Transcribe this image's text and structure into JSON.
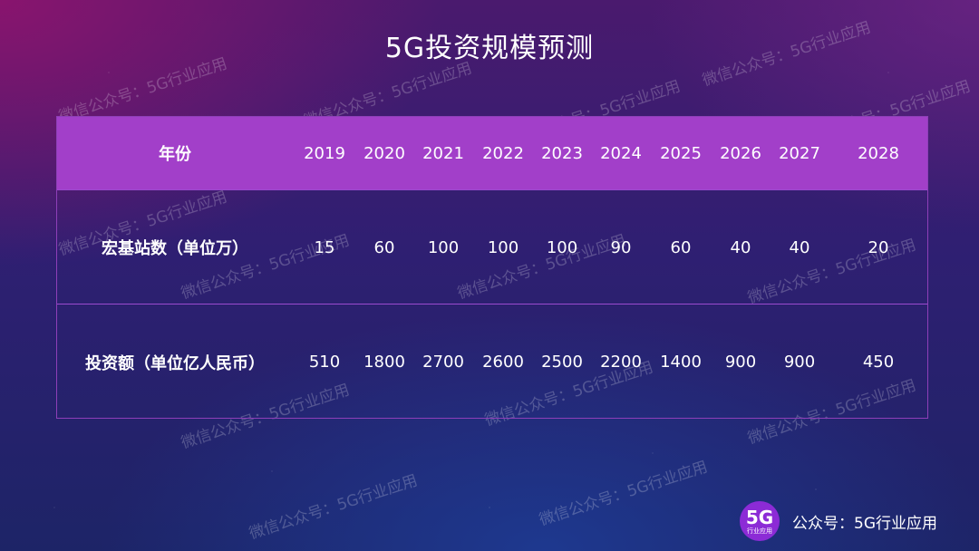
{
  "title": "5G投资规模预测",
  "table": {
    "header": [
      "年份",
      "2019",
      "2020",
      "2021",
      "2022",
      "2023",
      "2024",
      "2025",
      "2026",
      "2027",
      "2028"
    ],
    "rows": [
      [
        "宏基站数（单位万）",
        "15",
        "60",
        "100",
        "100",
        "100",
        "90",
        "60",
        "40",
        "40",
        "20"
      ],
      [
        "投资额（单位亿人民币）",
        "510",
        "1800",
        "2700",
        "2600",
        "2500",
        "2200",
        "1400",
        "900",
        "900",
        "450"
      ]
    ]
  },
  "watermark": "微信公众号：5G行业应用",
  "footer": {
    "logo_big": "5G",
    "logo_small": "行业应用",
    "account": "公众号：5G行业应用"
  },
  "colors": {
    "header_bg": "#a23fc9",
    "border": "#8e3fb8",
    "logo_bg": "#8c2bd6"
  }
}
